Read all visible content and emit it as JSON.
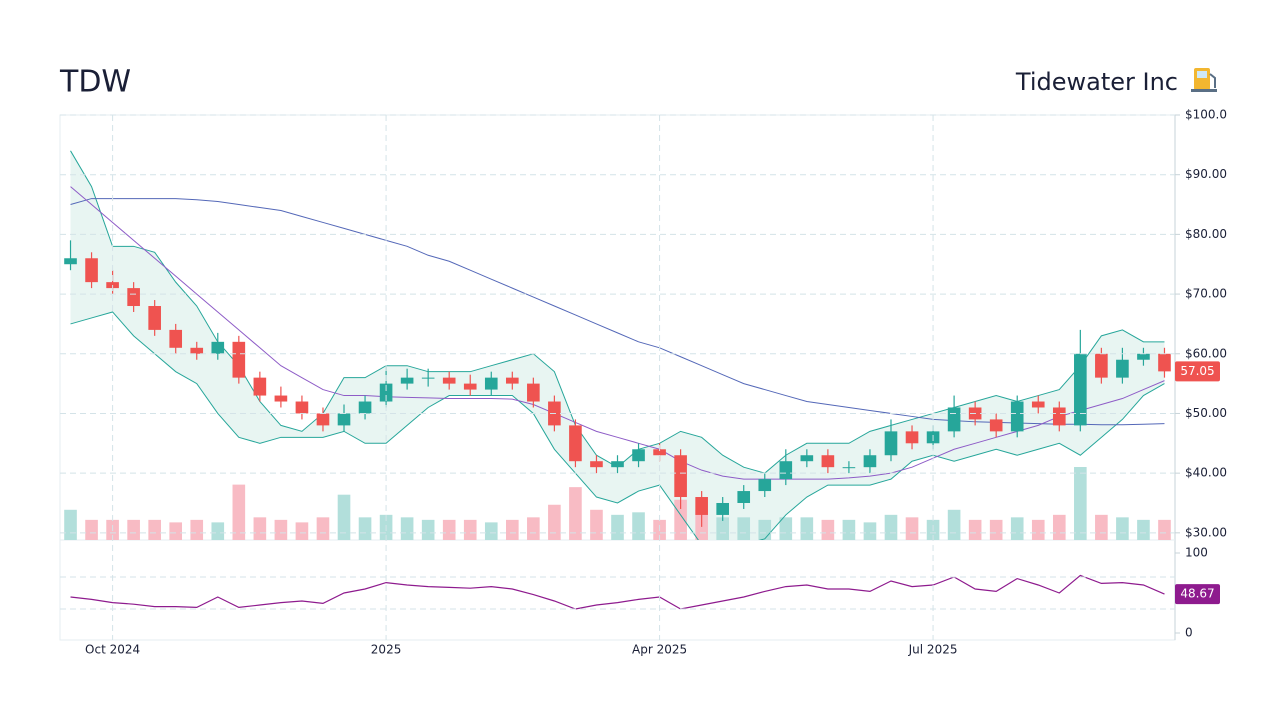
{
  "chart_data": {
    "type": "candlestick",
    "title": "TDW",
    "subtitle": "Tidewater Inc",
    "categories": [
      null,
      null,
      "Oct 2024",
      null,
      null,
      null,
      null,
      null,
      null,
      null,
      null,
      null,
      null,
      null,
      null,
      "2025",
      null,
      null,
      null,
      null,
      null,
      null,
      null,
      null,
      null,
      null,
      null,
      null,
      "Apr 2025",
      null,
      null,
      null,
      null,
      null,
      null,
      null,
      null,
      null,
      null,
      null,
      null,
      "Jul 2025",
      null,
      null,
      null,
      null,
      null,
      null,
      null,
      null,
      null,
      null,
      null
    ],
    "open": [
      75,
      76,
      72,
      71,
      68,
      64,
      61,
      60,
      62,
      56,
      53,
      52,
      50,
      48,
      50,
      52,
      55,
      56,
      56,
      55,
      54,
      56,
      55,
      52,
      48,
      42,
      41,
      42,
      44,
      43,
      36,
      33,
      35,
      37,
      39,
      42,
      43,
      41,
      41,
      43,
      47,
      45,
      47,
      51,
      49,
      47,
      52,
      51,
      48,
      60,
      56,
      59,
      60
    ],
    "high": [
      79,
      77,
      74,
      72,
      69,
      65,
      62,
      63.5,
      63,
      57,
      54.5,
      53,
      51,
      51.5,
      53,
      58,
      57.5,
      57.5,
      57,
      56.5,
      57,
      57,
      56,
      53,
      49,
      43,
      43,
      45,
      45,
      44,
      37,
      36,
      38,
      40,
      44,
      44,
      44,
      42,
      44,
      49,
      48,
      48,
      53,
      52,
      50,
      53,
      53,
      52,
      64,
      61,
      61,
      61,
      61
    ],
    "low": [
      74,
      71,
      70,
      67,
      63,
      60,
      59,
      59,
      55,
      52,
      51,
      49,
      47,
      47,
      49,
      51,
      54,
      54.5,
      54,
      53,
      53,
      54,
      51,
      47,
      41,
      40,
      40,
      41,
      42,
      34,
      31,
      32,
      34,
      36,
      38,
      41,
      40,
      40,
      40,
      42,
      44,
      44,
      46,
      48,
      46,
      46,
      50,
      47,
      47,
      55,
      55,
      58,
      56
    ],
    "close": [
      76,
      72,
      71,
      68,
      64,
      61,
      60,
      62,
      56,
      53,
      52,
      50,
      48,
      50,
      52,
      55,
      56,
      56,
      55,
      54,
      56,
      55,
      52,
      48,
      42,
      41,
      42,
      44,
      43,
      36,
      33,
      35,
      37,
      39,
      42,
      43,
      41,
      41,
      43,
      47,
      45,
      47,
      51,
      49,
      47,
      52,
      51,
      48,
      60,
      56,
      59,
      60,
      57.05
    ],
    "volume": [
      1.2,
      0.8,
      0.8,
      0.8,
      0.8,
      0.7,
      0.8,
      0.7,
      2.2,
      0.9,
      0.8,
      0.7,
      0.9,
      1.8,
      0.9,
      1.0,
      0.9,
      0.8,
      0.8,
      0.8,
      0.7,
      0.8,
      0.9,
      1.4,
      2.1,
      1.2,
      1.0,
      1.1,
      0.8,
      1.6,
      1.2,
      0.9,
      0.9,
      0.8,
      0.9,
      0.9,
      0.8,
      0.8,
      0.7,
      1.0,
      0.9,
      0.8,
      1.2,
      0.8,
      0.8,
      0.9,
      0.8,
      1.0,
      2.9,
      1.0,
      0.9,
      0.8,
      0.8
    ],
    "sma50": [
      88,
      85,
      82,
      79,
      76,
      73,
      70,
      67,
      64,
      61,
      58,
      56,
      54,
      53,
      53,
      52.8,
      52.7,
      52.6,
      52.5,
      52.5,
      52.5,
      52.4,
      51.5,
      50,
      48.5,
      47,
      46,
      45,
      44,
      42,
      40.5,
      39.5,
      39,
      39,
      39,
      39,
      39,
      39.2,
      39.5,
      40,
      41,
      42.5,
      44,
      45,
      46,
      47,
      48,
      49.5,
      50.5,
      51.5,
      52.5,
      54,
      55.5
    ],
    "sma200": [
      85,
      86,
      86,
      86,
      86,
      86,
      85.8,
      85.5,
      85,
      84.5,
      84,
      83,
      82,
      81,
      80,
      79,
      78,
      76.5,
      75.5,
      74,
      72.5,
      71,
      69.5,
      68,
      66.5,
      65,
      63.5,
      62,
      61,
      59.5,
      58,
      56.5,
      55,
      54,
      53,
      52,
      51.5,
      51,
      50.5,
      50,
      49.5,
      49,
      48.8,
      48.6,
      48.5,
      48.4,
      48.3,
      48.2,
      48.2,
      48.1,
      48.1,
      48.2,
      48.3
    ],
    "bb_upper": [
      94,
      88,
      78,
      78,
      77,
      72,
      68,
      62,
      58,
      52,
      48,
      47,
      50,
      56,
      56,
      58,
      58,
      57,
      57,
      57,
      58,
      59,
      60,
      57,
      48,
      43,
      41,
      44,
      45,
      47,
      46,
      43,
      41,
      40,
      43,
      45,
      45,
      45,
      47,
      48,
      49,
      50,
      51,
      52,
      53,
      52,
      53,
      54,
      58,
      63,
      64,
      62,
      62
    ],
    "bb_lower": [
      65,
      66,
      67,
      63,
      60,
      57,
      55,
      50,
      46,
      45,
      46,
      46,
      46,
      47,
      45,
      45,
      48,
      51,
      53,
      53,
      53,
      53,
      50,
      44,
      40,
      36,
      35,
      37,
      38,
      33,
      28,
      27,
      28,
      29,
      33,
      36,
      38,
      38,
      38,
      39,
      42,
      43,
      42,
      43,
      44,
      43,
      44,
      45,
      43,
      46,
      49,
      53,
      55
    ],
    "rsi": [
      45,
      42,
      38,
      36,
      33,
      33,
      32,
      45,
      32,
      35,
      38,
      40,
      37,
      50,
      55,
      63,
      60,
      58,
      57,
      56,
      58,
      55,
      48,
      40,
      30,
      35,
      38,
      42,
      45,
      30,
      35,
      40,
      45,
      52,
      58,
      60,
      55,
      55,
      52,
      65,
      58,
      60,
      70,
      55,
      52,
      68,
      60,
      50,
      72,
      62,
      63,
      60,
      48.67
    ],
    "ylim": [
      28.8,
      100
    ],
    "yticks": [
      {
        "value": 30,
        "label": "$30.00"
      },
      {
        "value": 40,
        "label": "$40.00"
      },
      {
        "value": 50,
        "label": "$50.00"
      },
      {
        "value": 60,
        "label": "$60.00"
      },
      {
        "value": 70,
        "label": "$70.00"
      },
      {
        "value": 80,
        "label": "$80.00"
      },
      {
        "value": 90,
        "label": "$90.00"
      },
      {
        "value": 100,
        "label": "$100.0"
      }
    ],
    "rsi_ylim": [
      -8.75,
      116.25
    ],
    "rsi_yticks": [
      0,
      100
    ],
    "rsi_levels": [
      30,
      70
    ],
    "colors": {
      "up": "#26a69a",
      "down": "#ef5350",
      "up_volume": "#b2dfdb",
      "down_volume": "#f8bbc4",
      "sma50": "#8e5cc7",
      "sma200": "#5468b8",
      "band": "#26a69a",
      "band_fill": "#e6f4f1",
      "rsi": "#8e1b8e",
      "grid": "#d4e3e8"
    },
    "grid": true
  }
}
